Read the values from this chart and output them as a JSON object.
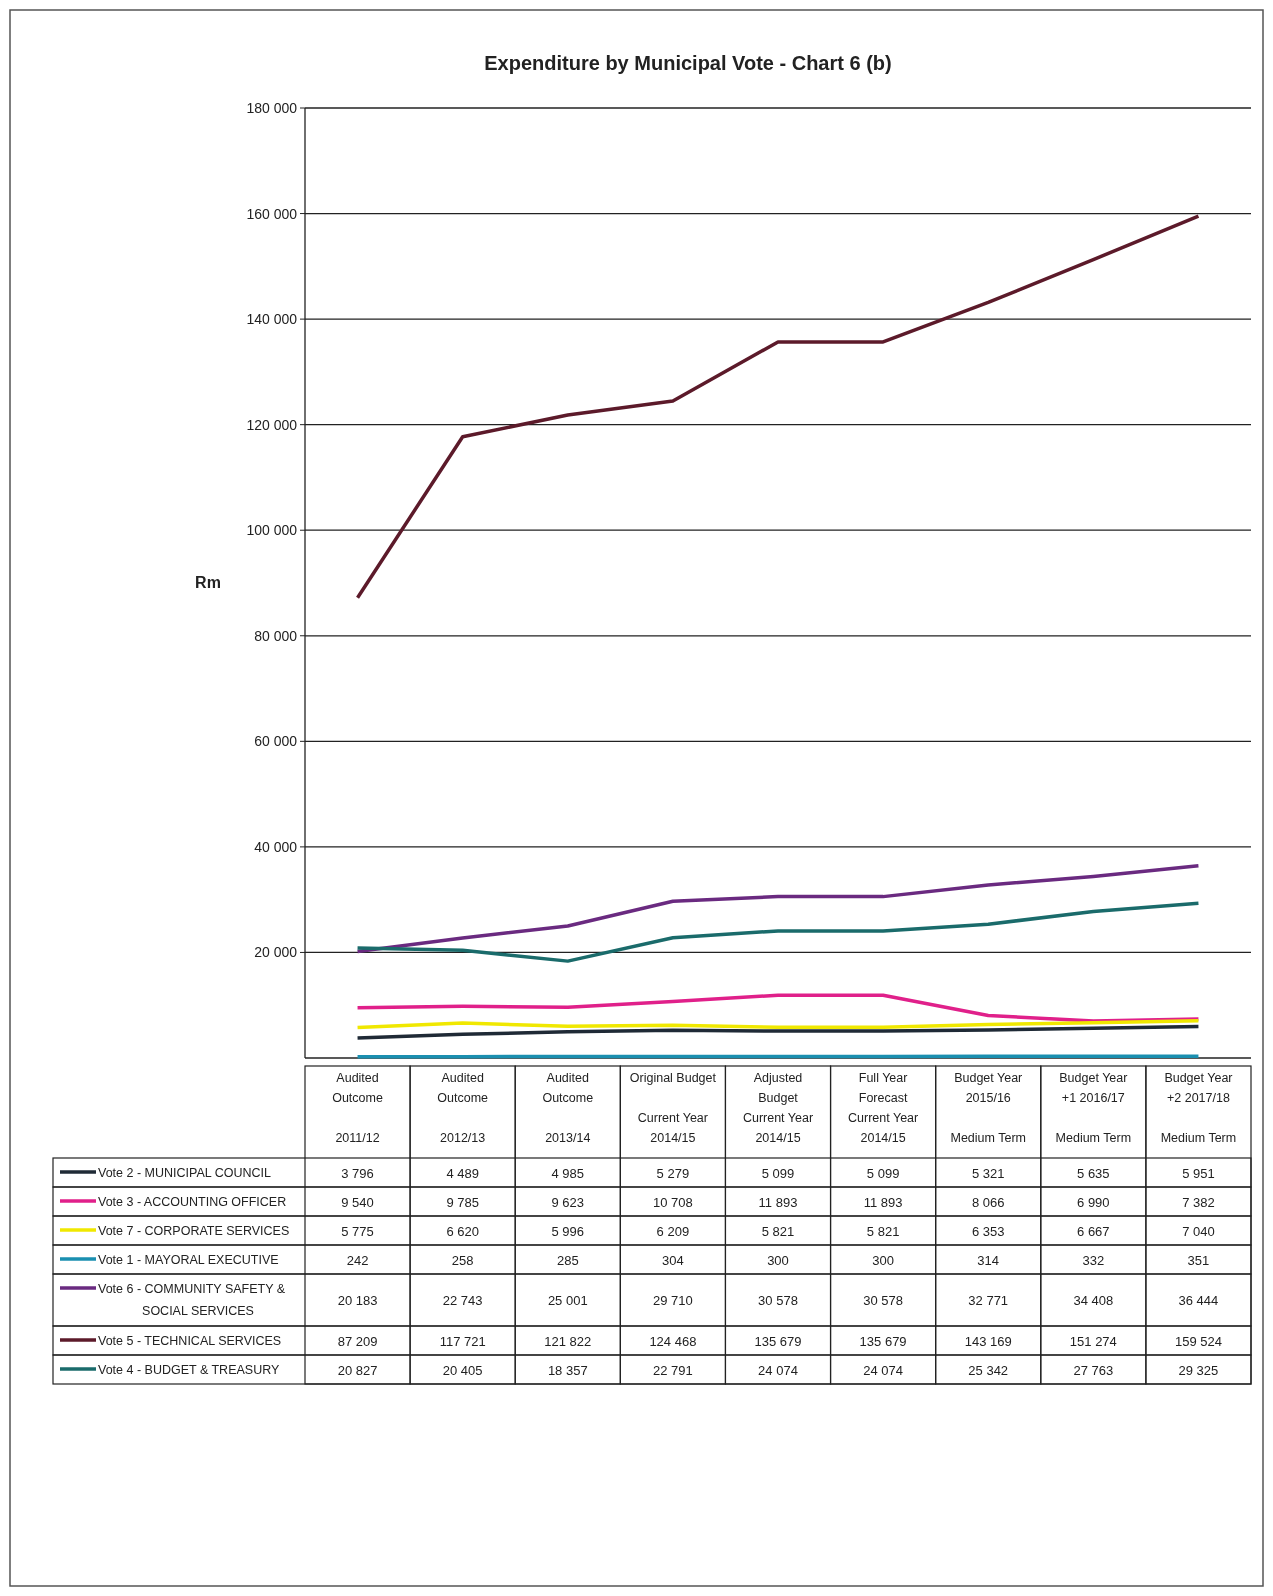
{
  "chart_data": {
    "type": "line",
    "title": "Expenditure by Municipal Vote - Chart 6 (b)",
    "ylabel": "Rm",
    "categories": [
      "Audited\nOutcome\n\n2011/12",
      "Audited\nOutcome\n\n2012/13",
      "Audited\nOutcome\n\n2013/14",
      "Original Budget\n\nCurrent Year\n2014/15",
      "Adjusted\nBudget\nCurrent Year\n2014/15",
      "Full Year\nForecast\nCurrent Year\n2014/15",
      "Budget Year\n2015/16\n\nMedium Term",
      "Budget Year\n+1 2016/17\n\nMedium Term",
      "Budget Year\n+2 2017/18\n\nMedium Term"
    ],
    "series": [
      {
        "name": "Vote 2 - MUNICIPAL COUNCIL",
        "color": "#1f2a36",
        "values": [
          3796,
          4489,
          4985,
          5279,
          5099,
          5099,
          5321,
          5635,
          5951
        ]
      },
      {
        "name": "Vote 3 - ACCOUNTING OFFICER",
        "color": "#e0208a",
        "values": [
          9540,
          9785,
          9623,
          10708,
          11893,
          11893,
          8066,
          6990,
          7382
        ]
      },
      {
        "name": "Vote 7 - CORPORATE SERVICES",
        "color": "#f0e800",
        "values": [
          5775,
          6620,
          5996,
          6209,
          5821,
          5821,
          6353,
          6667,
          7040
        ]
      },
      {
        "name": "Vote 1 - MAYORAL EXECUTIVE",
        "color": "#1a8fb0",
        "values": [
          242,
          258,
          285,
          304,
          300,
          300,
          314,
          332,
          351
        ]
      },
      {
        "name": "Vote 6 - COMMUNITY SAFETY & SOCIAL SERVICES",
        "color": "#6a2a80",
        "values": [
          20183,
          22743,
          25001,
          29710,
          30578,
          30578,
          32771,
          34408,
          36444
        ]
      },
      {
        "name": "Vote 5 - TECHNICAL SERVICES",
        "color": "#5c1a2a",
        "values": [
          87209,
          117721,
          121822,
          124468,
          135679,
          135679,
          143169,
          151274,
          159524
        ]
      },
      {
        "name": "Vote 4 - BUDGET & TREASURY",
        "color": "#1a6b6b",
        "values": [
          20827,
          20405,
          18357,
          22791,
          24074,
          24074,
          25342,
          27763,
          29325
        ]
      }
    ],
    "ylim": [
      0,
      180000
    ],
    "yticks": [
      {
        "value": 20000,
        "label": "20 000"
      },
      {
        "value": 40000,
        "label": "40 000"
      },
      {
        "value": 60000,
        "label": "60 000"
      },
      {
        "value": 80000,
        "label": "80 000"
      },
      {
        "value": 100000,
        "label": "100 000"
      },
      {
        "value": 120000,
        "label": "120 000"
      },
      {
        "value": 140000,
        "label": "140 000"
      },
      {
        "value": 160000,
        "label": "160 000"
      },
      {
        "value": 180000,
        "label": "180 000"
      }
    ],
    "grid": "y",
    "legend": "bottom",
    "data_labels": true,
    "marker": "none",
    "line_style": "solid"
  }
}
